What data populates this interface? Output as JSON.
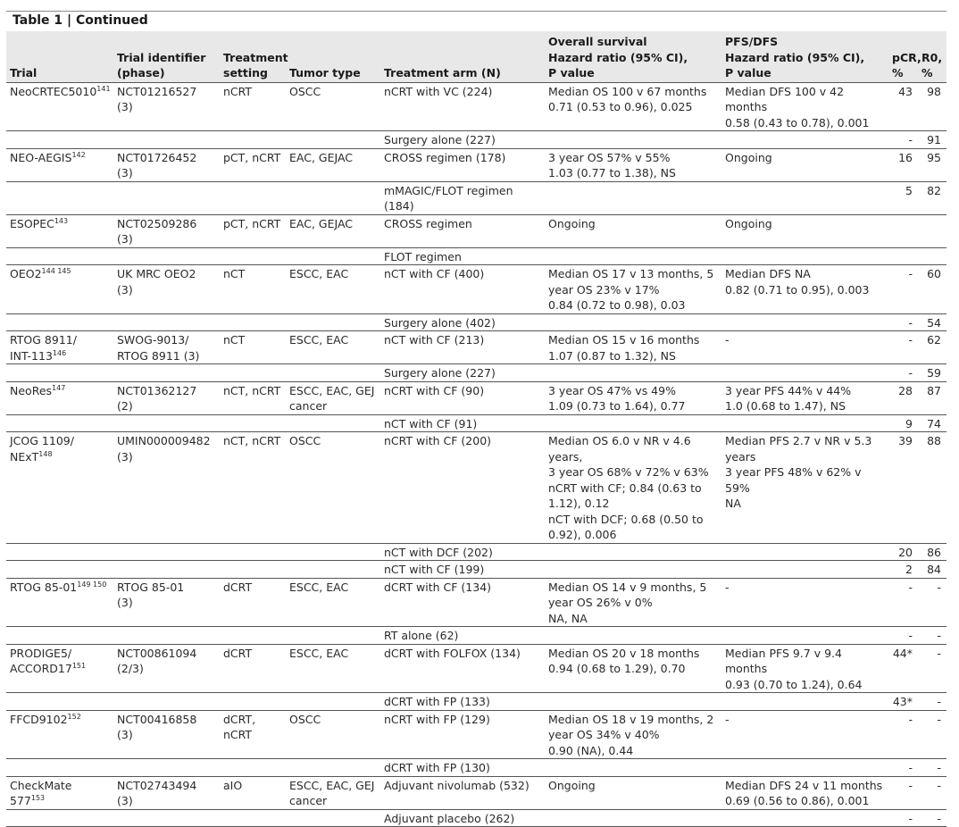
{
  "table_title": "Table 1 | Continued",
  "headers": {
    "trial": "Trial",
    "identifier": "Trial identifier\n(phase)",
    "setting": "Treatment\nsetting",
    "tumor": "Tumor type",
    "arm": "Treatment arm (N)",
    "os": "Overall survival\nHazard ratio (95% CI),\nP value",
    "pfs": "PFS/DFS\nHazard ratio (95% CI),\nP value",
    "pcr": "pCR,\n%",
    "r0": "R0,\n%"
  },
  "rows": [
    {
      "trial": "NeoCRTEC5010",
      "ref": "141",
      "identifier": "NCT01216527\n(3)",
      "setting": "nCRT",
      "tumor": "OSCC",
      "arm": "nCRT with VC (224)",
      "os": "Median OS 100 v 67 months\n0.71 (0.53 to 0.96), 0.025",
      "pfs": "Median DFS 100 v 42\nmonths\n0.58 (0.43 to 0.78), 0.001",
      "pcr": "43",
      "r0": "98"
    },
    {
      "trial": "",
      "ref": "",
      "identifier": "",
      "setting": "",
      "tumor": "",
      "arm": "Surgery alone (227)",
      "os": "",
      "pfs": "",
      "pcr": "-",
      "r0": "91"
    },
    {
      "trial": "NEO-AEGIS",
      "ref": "142",
      "identifier": "NCT01726452\n(3)",
      "setting": "pCT, nCRT",
      "tumor": "EAC, GEJAC",
      "arm": "CROSS regimen (178)",
      "os": "3 year OS 57% v 55%\n1.03 (0.77 to 1.38), NS",
      "pfs": "Ongoing",
      "pcr": "16",
      "r0": "95"
    },
    {
      "trial": "",
      "ref": "",
      "identifier": "",
      "setting": "",
      "tumor": "",
      "arm": "mMAGIC/FLOT regimen (184)",
      "os": "",
      "pfs": "",
      "pcr": "5",
      "r0": "82"
    },
    {
      "trial": "ESOPEC",
      "ref": "143",
      "identifier": "NCT02509286\n(3)",
      "setting": "pCT, nCRT",
      "tumor": "EAC, GEJAC",
      "arm": "CROSS regimen",
      "os": "Ongoing",
      "pfs": "Ongoing",
      "pcr": "",
      "r0": ""
    },
    {
      "trial": "",
      "ref": "",
      "identifier": "",
      "setting": "",
      "tumor": "",
      "arm": "FLOT regimen",
      "os": "",
      "pfs": "",
      "pcr": "",
      "r0": ""
    },
    {
      "trial": "OEO2",
      "ref": "144 145",
      "identifier": "UK MRC OEO2\n(3)",
      "setting": "nCT",
      "tumor": "ESCC, EAC",
      "arm": "nCT with CF (400)",
      "os": "Median OS 17 v 13 months, 5\nyear OS 23% v 17%\n0.84 (0.72 to 0.98), 0.03",
      "pfs": "Median DFS NA\n0.82 (0.71 to 0.95), 0.003",
      "pcr": "-",
      "r0": "60"
    },
    {
      "trial": "",
      "ref": "",
      "identifier": "",
      "setting": "",
      "tumor": "",
      "arm": "Surgery alone (402)",
      "os": "",
      "pfs": "",
      "pcr": "-",
      "r0": "54"
    },
    {
      "trial": "RTOG 8911/\nINT-113",
      "ref": "146",
      "identifier": "SWOG-9013/\nRTOG 8911 (3)",
      "setting": "nCT",
      "tumor": "ESCC, EAC",
      "arm": "nCT with CF (213)",
      "os": "Median OS 15 v 16 months\n1.07 (0.87 to 1.32), NS",
      "pfs": "-",
      "pcr": "-",
      "r0": "62"
    },
    {
      "trial": "",
      "ref": "",
      "identifier": "",
      "setting": "",
      "tumor": "",
      "arm": "Surgery alone (227)",
      "os": "",
      "pfs": "",
      "pcr": "-",
      "r0": "59"
    },
    {
      "trial": "NeoRes",
      "ref": "147",
      "identifier": "NCT01362127\n(2)",
      "setting": "nCT, nCRT",
      "tumor": "ESCC, EAC, GEJ\ncancer",
      "arm": "nCRT with CF (90)",
      "os": "3 year OS 47% vs 49%\n1.09 (0.73 to 1.64), 0.77",
      "pfs": "3 year PFS 44% v 44%\n1.0 (0.68 to 1.47), NS",
      "pcr": "28",
      "r0": "87"
    },
    {
      "trial": "",
      "ref": "",
      "identifier": "",
      "setting": "",
      "tumor": "",
      "arm": "nCT with CF (91)",
      "os": "",
      "pfs": "",
      "pcr": "9",
      "r0": "74"
    },
    {
      "trial": "JCOG 1109/\nNExT",
      "ref": "148",
      "identifier": "UMIN000009482\n(3)",
      "setting": "nCT, nCRT",
      "tumor": "OSCC",
      "arm": "nCRT with CF (200)",
      "os": "Median OS 6.0 v NR v 4.6 years,\n3 year OS 68% v 72% v 63%\nnCRT with CF; 0.84 (0.63 to\n1.12), 0.12\nnCT with DCF; 0.68 (0.50 to\n0.92), 0.006",
      "pfs": "Median PFS 2.7 v NR v 5.3\nyears\n3 year PFS 48% v 62% v\n59%\nNA",
      "pcr": "39",
      "r0": "88"
    },
    {
      "trial": "",
      "ref": "",
      "identifier": "",
      "setting": "",
      "tumor": "",
      "arm": "nCT with DCF (202)",
      "os": "",
      "pfs": "",
      "pcr": "20",
      "r0": "86"
    },
    {
      "trial": "",
      "ref": "",
      "identifier": "",
      "setting": "",
      "tumor": "",
      "arm": "nCT with CF (199)",
      "os": "",
      "pfs": "",
      "pcr": "2",
      "r0": "84"
    },
    {
      "trial": "RTOG 85-01",
      "ref": "149 150",
      "identifier": "RTOG 85-01\n(3)",
      "setting": "dCRT",
      "tumor": "ESCC, EAC",
      "arm": "dCRT with CF (134)",
      "os": "Median OS 14 v 9 months, 5\nyear OS 26% v 0%\nNA, NA",
      "pfs": "-",
      "pcr": "-",
      "r0": "-"
    },
    {
      "trial": "",
      "ref": "",
      "identifier": "",
      "setting": "",
      "tumor": "",
      "arm": "RT alone (62)",
      "os": "",
      "pfs": "",
      "pcr": "-",
      "r0": "-"
    },
    {
      "trial": "PRODIGE5/\nACCORD17",
      "ref": "151",
      "identifier": "NCT00861094\n(2/3)",
      "setting": "dCRT",
      "tumor": "ESCC, EAC",
      "arm": "dCRT with FOLFOX (134)",
      "os": "Median OS 20 v 18 months\n0.94 (0.68 to 1.29), 0.70",
      "pfs": "Median PFS 9.7 v 9.4 months\n0.93 (0.70 to 1.24), 0.64",
      "pcr": "44*",
      "r0": "-"
    },
    {
      "trial": "",
      "ref": "",
      "identifier": "",
      "setting": "",
      "tumor": "",
      "arm": "dCRT with FP (133)",
      "os": "",
      "pfs": "",
      "pcr": "43*",
      "r0": "-"
    },
    {
      "trial": "FFCD9102",
      "ref": "152",
      "identifier": "NCT00416858\n(3)",
      "setting": "dCRT, nCRT",
      "tumor": "OSCC",
      "arm": "nCRT with FP (129)",
      "os": "Median OS 18 v 19 months, 2\nyear OS 34% v 40%\n0.90 (NA), 0.44",
      "pfs": "-",
      "pcr": "-",
      "r0": "-"
    },
    {
      "trial": "",
      "ref": "",
      "identifier": "",
      "setting": "",
      "tumor": "",
      "arm": "dCRT with FP (130)",
      "os": "",
      "pfs": "",
      "pcr": "-",
      "r0": "-"
    },
    {
      "trial": "CheckMate 577",
      "ref": "153",
      "identifier": "NCT02743494\n(3)",
      "setting": "aIO",
      "tumor": "ESCC, EAC, GEJ\ncancer",
      "arm": "Adjuvant nivolumab (532)",
      "os": "Ongoing",
      "pfs": "Median DFS 24 v 11 months\n0.69 (0.56 to 0.86), 0.001",
      "pcr": "-",
      "r0": "-"
    },
    {
      "trial": "",
      "ref": "",
      "identifier": "",
      "setting": "",
      "tumor": "",
      "arm": "Adjuvant placebo (262)",
      "os": "",
      "pfs": "",
      "pcr": "-",
      "r0": "-"
    }
  ]
}
